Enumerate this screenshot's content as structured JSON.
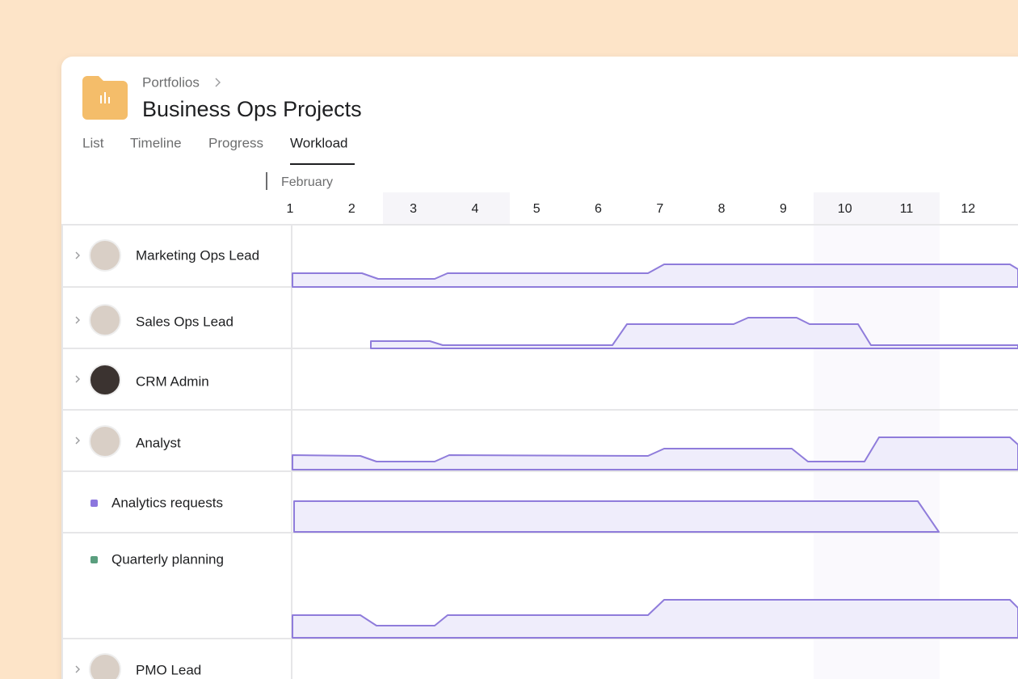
{
  "header": {
    "breadcrumb": "Portfolios",
    "title": "Business Ops Projects"
  },
  "tabs": [
    "List",
    "Timeline",
    "Progress",
    "Workload"
  ],
  "timeline": {
    "month": "February",
    "days": [
      "1",
      "2",
      "3",
      "4",
      "5",
      "6",
      "7",
      "8",
      "9",
      "10",
      "11",
      "12"
    ]
  },
  "rows": [
    "Marketing Ops Lead",
    "Sales Ops Lead",
    "CRM Admin",
    "Analyst",
    "Analytics requests",
    "Quarterly planning",
    "PMO Lead"
  ]
}
